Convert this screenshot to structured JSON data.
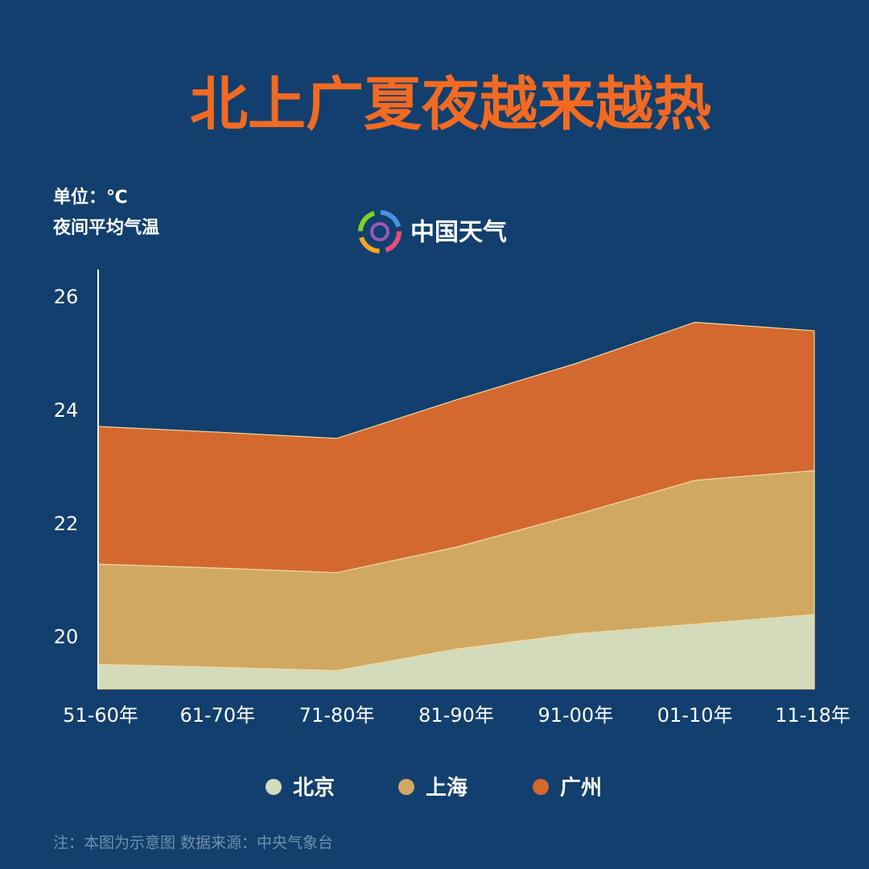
{
  "chart_data": {
    "type": "area",
    "title": "北上广夏夜越来越热",
    "unit": "单位：℃",
    "y_label": "夜间平均气温",
    "logo": "中国天气",
    "note": "注：本图为示意图 数据来源：中央气象台",
    "categories": [
      "51-60年",
      "61-70年",
      "71-80年",
      "81-90年",
      "91-00年",
      "01-10年",
      "11-18年"
    ],
    "series": [
      {
        "name": "北京",
        "color": "#d3dbbb",
        "values": [
          19.53,
          19.48,
          19.42,
          19.8,
          20.07,
          20.24,
          20.41
        ]
      },
      {
        "name": "上海",
        "color": "#d1a862",
        "values": [
          21.3,
          21.23,
          21.15,
          21.6,
          22.17,
          22.78,
          22.95
        ]
      },
      {
        "name": "广州",
        "color": "#d3692f",
        "values": [
          23.73,
          23.63,
          23.52,
          24.2,
          24.84,
          25.57,
          25.42
        ]
      }
    ],
    "ylim": [
      19.1,
      26.5
    ],
    "yticks": [
      20,
      22,
      24,
      26
    ]
  }
}
